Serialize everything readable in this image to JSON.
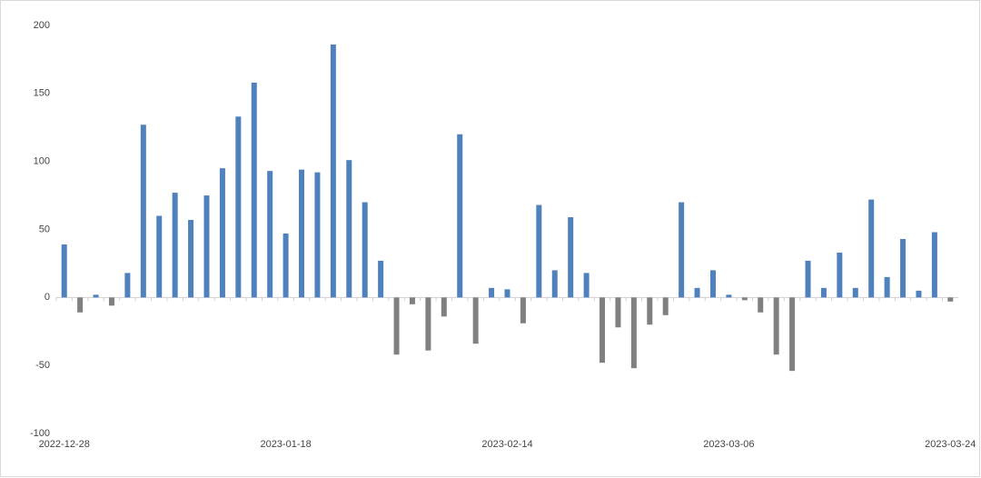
{
  "chart_data": {
    "type": "bar",
    "categories": [
      "2022-12-28",
      null,
      null,
      null,
      null,
      null,
      null,
      null,
      null,
      null,
      null,
      null,
      null,
      null,
      "2023-01-18",
      null,
      null,
      null,
      null,
      null,
      null,
      null,
      null,
      null,
      null,
      null,
      null,
      null,
      "2023-02-14",
      null,
      null,
      null,
      null,
      null,
      null,
      null,
      null,
      null,
      null,
      null,
      null,
      null,
      "2023-03-06",
      null,
      null,
      null,
      null,
      null,
      null,
      null,
      null,
      null,
      null,
      null,
      null,
      null,
      "2023-03-24"
    ],
    "values": [
      39,
      -11,
      2,
      -6,
      18,
      127,
      60,
      77,
      57,
      75,
      95,
      133,
      158,
      93,
      47,
      94,
      92,
      186,
      101,
      70,
      27,
      -42,
      -5,
      -39,
      -14,
      120,
      -34,
      7,
      6,
      -19,
      68,
      20,
      59,
      18,
      -48,
      -22,
      -52,
      -20,
      -13,
      70,
      7,
      20,
      2,
      -2,
      -11,
      -42,
      -54,
      27,
      7,
      33,
      7,
      72,
      15,
      43,
      5,
      48,
      -3
    ],
    "color": "#4f81bd",
    "negative_color": "#808080",
    "ylim": [
      -100,
      200
    ],
    "yticks": [
      -100,
      -50,
      0,
      50,
      100,
      150,
      200
    ],
    "grid": false
  }
}
